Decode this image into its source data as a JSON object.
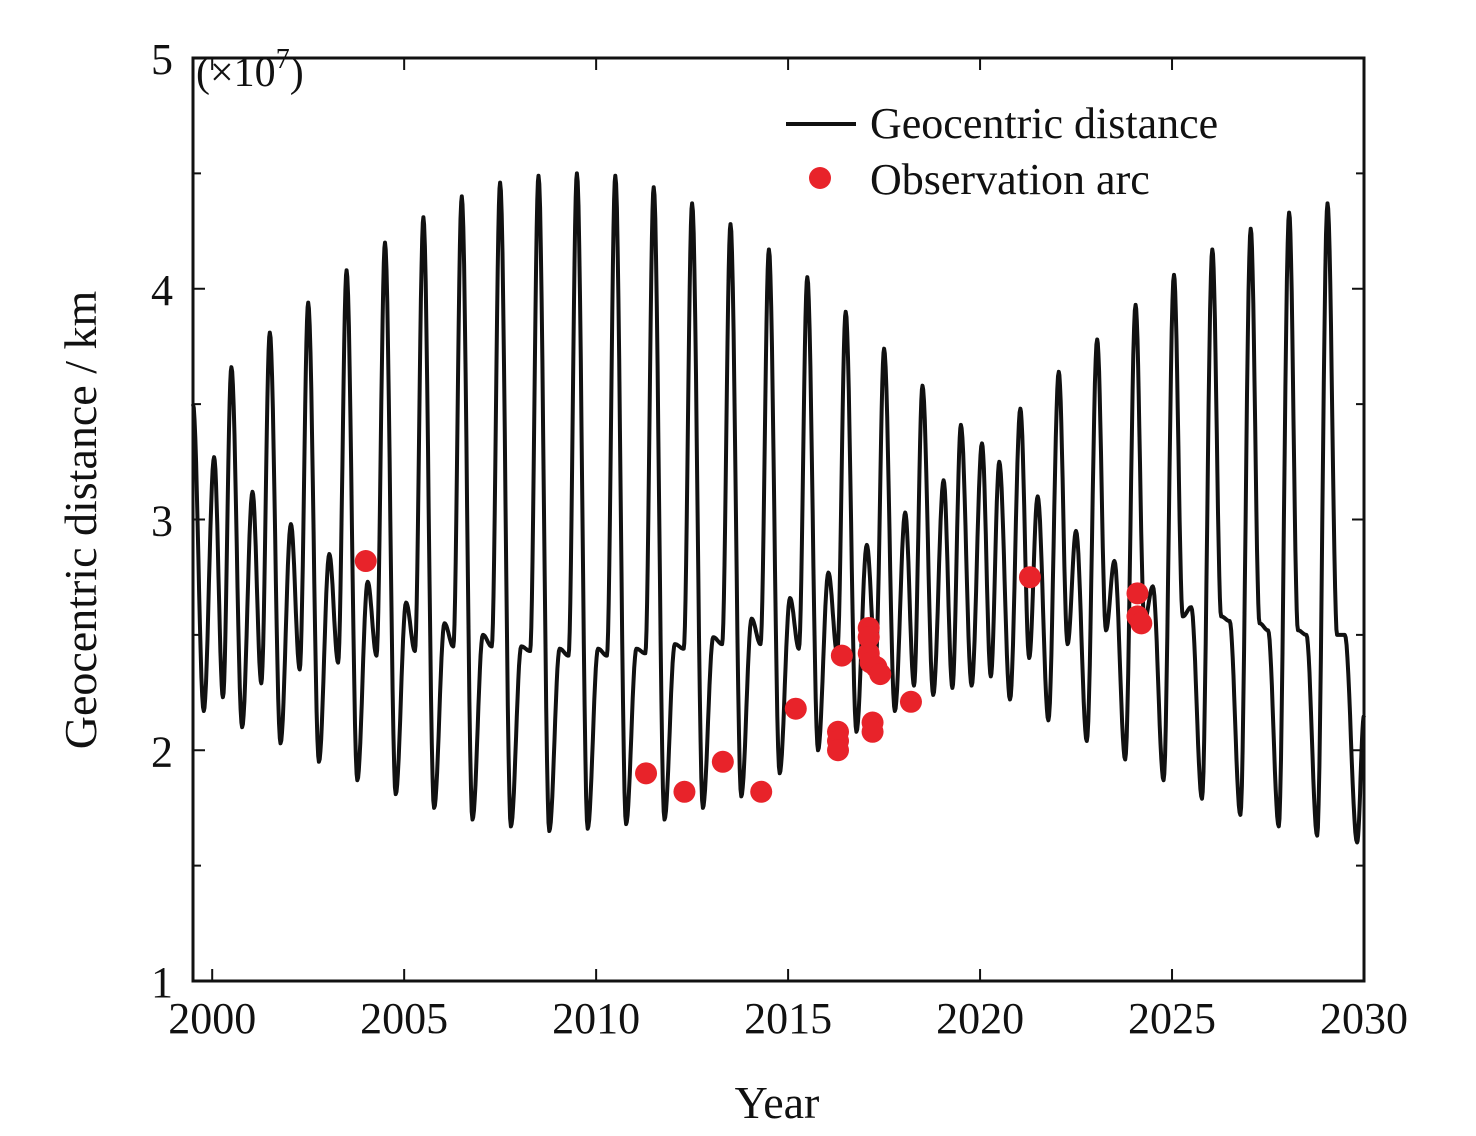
{
  "chart_data": {
    "type": "line",
    "xlabel": "Year",
    "ylabel": "Geocentric distance / km",
    "y_multiplier_label": "(×10",
    "y_multiplier_exp": "7",
    "y_multiplier_close": ")",
    "xlim": [
      1999.5,
      2030
    ],
    "ylim": [
      1,
      5
    ],
    "x_ticks": [
      2000,
      2005,
      2010,
      2015,
      2020,
      2025,
      2030
    ],
    "x_tick_labels": [
      "2000",
      "2005",
      "2010",
      "2015",
      "2020",
      "2025",
      "2030"
    ],
    "y_ticks": [
      1,
      2,
      3,
      4,
      5
    ],
    "y_tick_labels": [
      "1",
      "2",
      "3",
      "4",
      "5"
    ],
    "y_minor_ticks": [
      1.5,
      2.5,
      3.5,
      4.5
    ],
    "grid": false,
    "legend_position": "top-right",
    "series": [
      {
        "name": "Geocentric distance",
        "style": "line",
        "color": "#111111",
        "peaks": [
          [
            1999.5,
            3.5
          ],
          [
            2000.05,
            3.27
          ],
          [
            2000.5,
            3.66
          ],
          [
            2001.05,
            3.12
          ],
          [
            2001.5,
            3.81
          ],
          [
            2002.05,
            2.98
          ],
          [
            2002.5,
            3.94
          ],
          [
            2003.05,
            2.85
          ],
          [
            2003.5,
            4.08
          ],
          [
            2004.05,
            2.73
          ],
          [
            2004.5,
            4.2
          ],
          [
            2005.05,
            2.64
          ],
          [
            2005.5,
            4.31
          ],
          [
            2006.05,
            2.55
          ],
          [
            2006.5,
            4.4
          ],
          [
            2007.05,
            2.5
          ],
          [
            2007.5,
            4.46
          ],
          [
            2008.05,
            2.45
          ],
          [
            2008.5,
            4.49
          ],
          [
            2009.05,
            2.44
          ],
          [
            2009.5,
            4.5
          ],
          [
            2010.05,
            2.44
          ],
          [
            2010.5,
            4.49
          ],
          [
            2011.05,
            2.44
          ],
          [
            2011.5,
            4.44
          ],
          [
            2012.05,
            2.46
          ],
          [
            2012.5,
            4.37
          ],
          [
            2013.05,
            2.49
          ],
          [
            2013.5,
            4.28
          ],
          [
            2014.05,
            2.57
          ],
          [
            2014.5,
            4.17
          ],
          [
            2015.05,
            2.66
          ],
          [
            2015.5,
            4.05
          ],
          [
            2016.05,
            2.77
          ],
          [
            2016.5,
            3.9
          ],
          [
            2017.05,
            2.89
          ],
          [
            2017.5,
            3.74
          ],
          [
            2018.05,
            3.03
          ],
          [
            2018.5,
            3.58
          ],
          [
            2019.05,
            3.17
          ],
          [
            2019.5,
            3.41
          ],
          [
            2020.05,
            3.33
          ],
          [
            2020.5,
            3.25
          ],
          [
            2021.05,
            3.48
          ],
          [
            2021.5,
            3.1
          ],
          [
            2022.05,
            3.64
          ],
          [
            2022.5,
            2.95
          ],
          [
            2023.05,
            3.78
          ],
          [
            2023.5,
            2.82
          ],
          [
            2024.05,
            3.93
          ],
          [
            2024.5,
            2.71
          ],
          [
            2025.05,
            4.06
          ],
          [
            2025.5,
            2.62
          ],
          [
            2026.05,
            4.17
          ],
          [
            2026.5,
            2.56
          ],
          [
            2027.05,
            4.26
          ],
          [
            2027.5,
            2.52
          ],
          [
            2028.05,
            4.33
          ],
          [
            2028.5,
            2.5
          ],
          [
            2029.05,
            4.37
          ],
          [
            2029.5,
            2.5
          ],
          [
            2030,
            2.15
          ]
        ],
        "troughs": [
          [
            1999.78,
            2.17
          ],
          [
            2000.28,
            2.23
          ],
          [
            2000.78,
            2.1
          ],
          [
            2001.28,
            2.29
          ],
          [
            2001.78,
            2.03
          ],
          [
            2002.28,
            2.35
          ],
          [
            2002.78,
            1.95
          ],
          [
            2003.28,
            2.38
          ],
          [
            2003.78,
            1.87
          ],
          [
            2004.28,
            2.41
          ],
          [
            2004.78,
            1.81
          ],
          [
            2005.28,
            2.43
          ],
          [
            2005.78,
            1.75
          ],
          [
            2006.28,
            2.45
          ],
          [
            2006.78,
            1.7
          ],
          [
            2007.28,
            2.45
          ],
          [
            2007.78,
            1.67
          ],
          [
            2008.28,
            2.43
          ],
          [
            2008.78,
            1.65
          ],
          [
            2009.28,
            2.41
          ],
          [
            2009.78,
            1.66
          ],
          [
            2010.28,
            2.41
          ],
          [
            2010.78,
            1.68
          ],
          [
            2011.28,
            2.42
          ],
          [
            2011.78,
            1.7
          ],
          [
            2012.28,
            2.44
          ],
          [
            2012.78,
            1.75
          ],
          [
            2013.28,
            2.46
          ],
          [
            2013.78,
            1.8
          ],
          [
            2014.28,
            2.46
          ],
          [
            2014.78,
            1.9
          ],
          [
            2015.28,
            2.44
          ],
          [
            2015.78,
            2.0
          ],
          [
            2016.28,
            2.42
          ],
          [
            2016.78,
            2.08
          ],
          [
            2017.28,
            2.38
          ],
          [
            2017.78,
            2.17
          ],
          [
            2018.28,
            2.28
          ],
          [
            2018.78,
            2.24
          ],
          [
            2019.28,
            2.27
          ],
          [
            2019.78,
            2.28
          ],
          [
            2020.28,
            2.32
          ],
          [
            2020.78,
            2.22
          ],
          [
            2021.28,
            2.4
          ],
          [
            2021.78,
            2.13
          ],
          [
            2022.28,
            2.46
          ],
          [
            2022.78,
            2.04
          ],
          [
            2023.28,
            2.52
          ],
          [
            2023.78,
            1.96
          ],
          [
            2024.28,
            2.56
          ],
          [
            2024.78,
            1.87
          ],
          [
            2025.28,
            2.58
          ],
          [
            2025.78,
            1.79
          ],
          [
            2026.28,
            2.58
          ],
          [
            2026.78,
            1.72
          ],
          [
            2027.28,
            2.55
          ],
          [
            2027.78,
            1.67
          ],
          [
            2028.28,
            2.52
          ],
          [
            2028.78,
            1.63
          ],
          [
            2029.3,
            2.5
          ],
          [
            2029.82,
            1.6
          ]
        ]
      },
      {
        "name": "Observation arc",
        "style": "points",
        "color": "#e8232a",
        "points": [
          [
            2004.0,
            2.82
          ],
          [
            2011.3,
            1.9
          ],
          [
            2012.3,
            1.82
          ],
          [
            2013.3,
            1.95
          ],
          [
            2014.3,
            1.82
          ],
          [
            2015.2,
            2.18
          ],
          [
            2016.3,
            2.08
          ],
          [
            2016.3,
            2.04
          ],
          [
            2016.3,
            2.0
          ],
          [
            2016.4,
            2.41
          ],
          [
            2017.1,
            2.53
          ],
          [
            2017.1,
            2.49
          ],
          [
            2017.1,
            2.42
          ],
          [
            2017.15,
            2.38
          ],
          [
            2017.2,
            2.12
          ],
          [
            2017.2,
            2.08
          ],
          [
            2017.3,
            2.36
          ],
          [
            2017.4,
            2.33
          ],
          [
            2018.2,
            2.21
          ],
          [
            2021.3,
            2.75
          ],
          [
            2024.1,
            2.68
          ],
          [
            2024.1,
            2.58
          ],
          [
            2024.2,
            2.55
          ]
        ]
      }
    ]
  }
}
